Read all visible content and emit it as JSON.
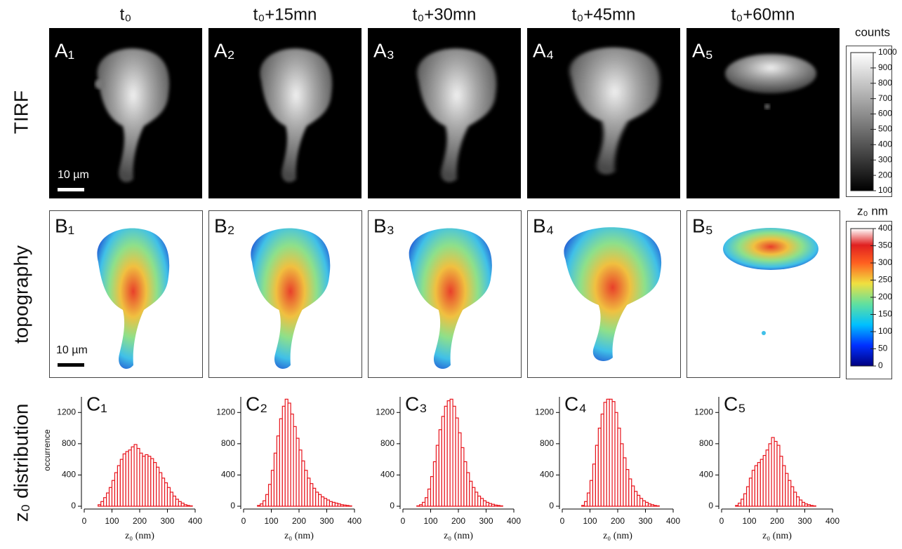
{
  "column_titles": [
    "t₀",
    "t₀+15mn",
    "t₀+30mn",
    "t₀+45mn",
    "t₀+60mn"
  ],
  "row_labels": [
    "TIRF",
    "topography",
    "z₀ distribution"
  ],
  "image_panels": {
    "tirf": [
      "A₁",
      "A₂",
      "A₃",
      "A₄",
      "A₅"
    ],
    "topography": [
      "B₁",
      "B₂",
      "B₃",
      "B₄",
      "B₅"
    ]
  },
  "scale_bars": [
    "10 µm",
    "10 µm"
  ],
  "colorbars": [
    {
      "title": "counts",
      "lim": [
        100,
        1000
      ],
      "ticks": [
        100,
        200,
        300,
        400,
        500,
        600,
        700,
        800,
        900,
        1000
      ]
    },
    {
      "title": "z₀ nm",
      "lim": [
        0,
        400
      ],
      "ticks": [
        0,
        50,
        100,
        150,
        200,
        250,
        300,
        350,
        400
      ]
    }
  ],
  "chart_data": [
    {
      "type": "histogram",
      "title": "C₁",
      "x_label": "z₀ (nm)",
      "y_label": "occurrence",
      "color": "#e8141c",
      "bins": [
        0,
        10,
        20,
        30,
        40,
        50,
        60,
        70,
        80,
        90,
        100,
        110,
        120,
        130,
        140,
        150,
        160,
        170,
        180,
        190,
        200,
        210,
        220,
        230,
        240,
        250,
        260,
        270,
        280,
        290,
        300,
        310,
        320,
        330,
        340,
        350,
        360,
        370,
        380,
        390,
        400
      ],
      "values": [
        0,
        0,
        0,
        0,
        0,
        20,
        60,
        110,
        170,
        240,
        330,
        430,
        520,
        600,
        670,
        700,
        720,
        760,
        790,
        740,
        680,
        640,
        660,
        640,
        610,
        560,
        500,
        430,
        360,
        300,
        240,
        180,
        130,
        90,
        60,
        40,
        20,
        10,
        5,
        0
      ],
      "xlim": [
        0,
        400
      ],
      "xticks": [
        0,
        100,
        200,
        300,
        400
      ],
      "ylim": [
        0,
        1400
      ],
      "yticks": [
        0,
        400,
        800,
        1200
      ]
    },
    {
      "type": "histogram",
      "title": "C₂",
      "x_label": "z₀ (nm)",
      "color": "#e8141c",
      "bins": [
        0,
        10,
        20,
        30,
        40,
        50,
        60,
        70,
        80,
        90,
        100,
        110,
        120,
        130,
        140,
        150,
        160,
        170,
        180,
        190,
        200,
        210,
        220,
        230,
        240,
        250,
        260,
        270,
        280,
        290,
        300,
        310,
        320,
        330,
        340,
        350,
        360,
        370,
        380,
        390,
        400
      ],
      "values": [
        0,
        0,
        0,
        0,
        0,
        10,
        30,
        70,
        150,
        280,
        460,
        680,
        900,
        1120,
        1280,
        1370,
        1320,
        1180,
        1020,
        870,
        720,
        580,
        460,
        360,
        290,
        230,
        180,
        150,
        120,
        100,
        80,
        60,
        50,
        40,
        30,
        20,
        15,
        10,
        5,
        0
      ],
      "xlim": [
        0,
        400
      ],
      "xticks": [
        0,
        100,
        200,
        300,
        400
      ],
      "ylim": [
        0,
        1400
      ],
      "yticks": [
        0,
        400,
        800,
        1200
      ]
    },
    {
      "type": "histogram",
      "title": "C₃",
      "x_label": "z₀ (nm)",
      "color": "#e8141c",
      "bins": [
        0,
        10,
        20,
        30,
        40,
        50,
        60,
        70,
        80,
        90,
        100,
        110,
        120,
        130,
        140,
        150,
        160,
        170,
        180,
        190,
        200,
        210,
        220,
        230,
        240,
        250,
        260,
        270,
        280,
        290,
        300,
        310,
        320,
        330,
        340,
        350,
        360,
        370,
        380,
        390,
        400
      ],
      "values": [
        0,
        0,
        0,
        0,
        0,
        5,
        20,
        50,
        110,
        220,
        380,
        570,
        780,
        980,
        1150,
        1280,
        1350,
        1370,
        1280,
        1130,
        940,
        750,
        570,
        430,
        320,
        240,
        180,
        130,
        100,
        70,
        50,
        35,
        25,
        15,
        10,
        5,
        0,
        0,
        0,
        0
      ],
      "xlim": [
        0,
        400
      ],
      "xticks": [
        0,
        100,
        200,
        300,
        400
      ],
      "ylim": [
        0,
        1400
      ],
      "yticks": [
        0,
        400,
        800,
        1200
      ]
    },
    {
      "type": "histogram",
      "title": "C₄",
      "x_label": "z₀ (nm)",
      "color": "#e8141c",
      "bins": [
        0,
        10,
        20,
        30,
        40,
        50,
        60,
        70,
        80,
        90,
        100,
        110,
        120,
        130,
        140,
        150,
        160,
        170,
        180,
        190,
        200,
        210,
        220,
        230,
        240,
        250,
        260,
        270,
        280,
        290,
        300,
        310,
        320,
        330,
        340,
        350,
        360,
        370,
        380,
        390,
        400
      ],
      "values": [
        0,
        0,
        0,
        0,
        0,
        0,
        0,
        10,
        60,
        170,
        330,
        540,
        780,
        1000,
        1180,
        1330,
        1370,
        1370,
        1340,
        1200,
        1000,
        800,
        620,
        470,
        350,
        260,
        190,
        140,
        100,
        70,
        50,
        30,
        20,
        10,
        5,
        0,
        0,
        0,
        0,
        0
      ],
      "xlim": [
        0,
        400
      ],
      "xticks": [
        0,
        100,
        200,
        300,
        400
      ],
      "ylim": [
        0,
        1400
      ],
      "yticks": [
        0,
        400,
        800,
        1200
      ]
    },
    {
      "type": "histogram",
      "title": "C₅",
      "x_label": "z₀ (nm)",
      "color": "#e8141c",
      "bins": [
        0,
        10,
        20,
        30,
        40,
        50,
        60,
        70,
        80,
        90,
        100,
        110,
        120,
        130,
        140,
        150,
        160,
        170,
        180,
        190,
        200,
        210,
        220,
        230,
        240,
        250,
        260,
        270,
        280,
        290,
        300,
        310,
        320,
        330,
        340,
        350,
        360,
        370,
        380,
        390,
        400
      ],
      "values": [
        0,
        0,
        0,
        0,
        0,
        10,
        40,
        90,
        160,
        250,
        360,
        460,
        520,
        560,
        600,
        650,
        720,
        800,
        880,
        830,
        780,
        640,
        520,
        420,
        330,
        250,
        180,
        120,
        80,
        50,
        30,
        20,
        10,
        5,
        0,
        0,
        0,
        0,
        0,
        0
      ],
      "xlim": [
        0,
        400
      ],
      "xticks": [
        0,
        100,
        200,
        300,
        400
      ],
      "ylim": [
        0,
        1400
      ],
      "yticks": [
        0,
        400,
        800,
        1200
      ]
    }
  ]
}
